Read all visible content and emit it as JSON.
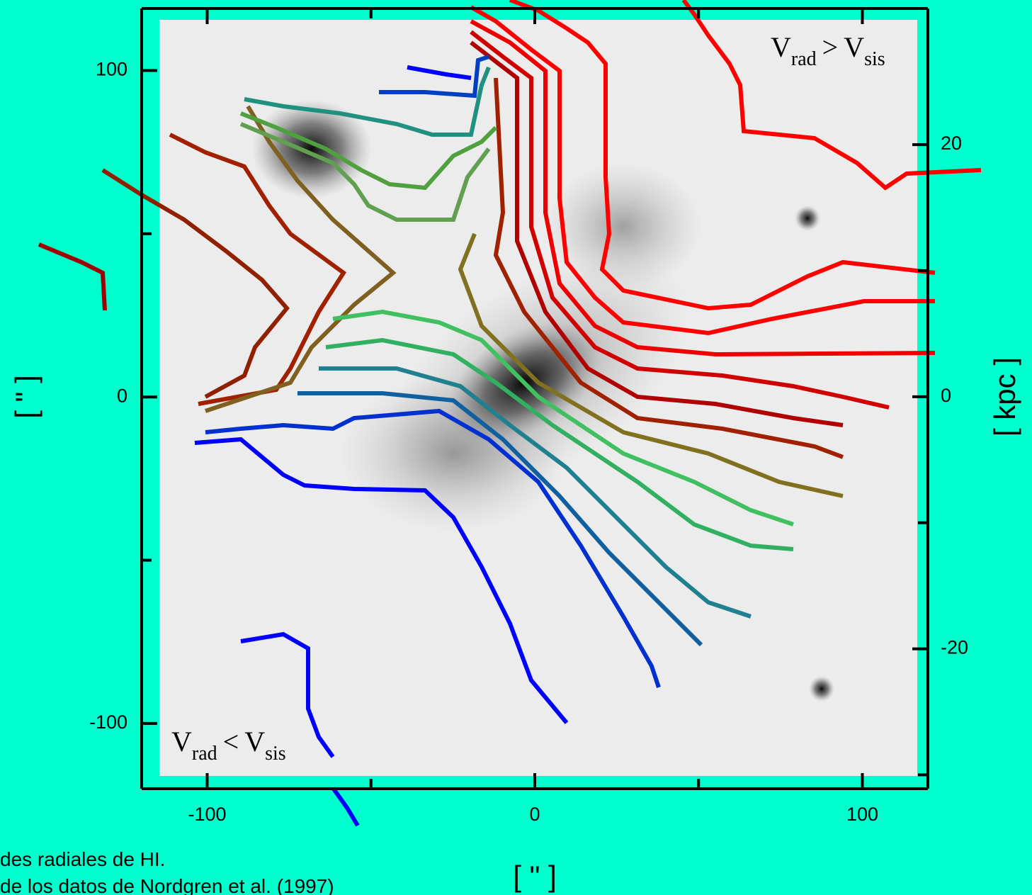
{
  "chart_data": {
    "type": "contour-image",
    "xlim": [
      -120,
      120
    ],
    "xticks": [
      -100,
      0,
      100
    ],
    "xminor": [
      -50,
      50
    ],
    "ylim": [
      -120,
      119
    ],
    "yticks": [
      -100,
      0,
      100
    ],
    "yminor": [
      -50,
      50
    ],
    "y2lim": [
      -31.1,
      30.8
    ],
    "y2ticks": [
      -20,
      0,
      20
    ],
    "y2minor": [
      -30,
      -10,
      10
    ],
    "x_label": "[ \" ]",
    "y_label": "[ \" ]",
    "y2_label": "[ kpc ]",
    "annotations": [
      {
        "parts": [
          "V",
          "rad",
          ">",
          "V",
          "sis"
        ]
      },
      {
        "parts": [
          "V",
          "rad",
          "<",
          "V",
          "sis"
        ]
      }
    ],
    "caption": [
      "des radiales de HI.",
      "de los datos de Nordgren et al. (1997)"
    ]
  }
}
